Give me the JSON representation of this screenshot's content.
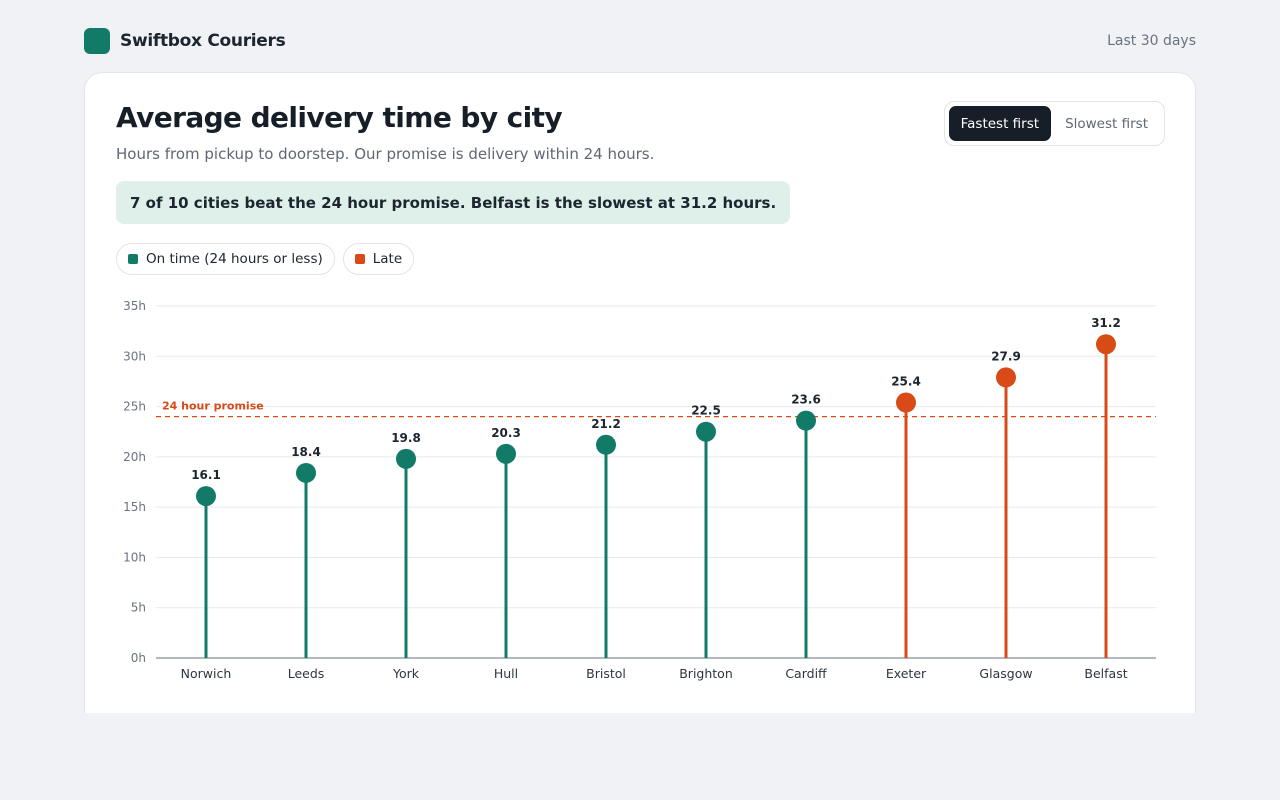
{
  "brand": {
    "name": "Swiftbox Couriers"
  },
  "header": {
    "period": "Last 30 days"
  },
  "card": {
    "title": "Average delivery time by city",
    "subtitle": "Hours from pickup to doorstep. Our promise is delivery within 24 hours.",
    "callout": "7 of 10 cities beat the 24 hour promise. Belfast is the slowest at 31.2 hours."
  },
  "sort_toggle": {
    "fastest": "Fastest first",
    "slowest": "Slowest first",
    "selected": "fastest"
  },
  "legend": {
    "on_time": "On time (24 hours or less)",
    "late": "Late"
  },
  "colors": {
    "on_time": "#127b68",
    "late": "#d84a16",
    "brand": "#127b68",
    "grid": "#e7eaee",
    "axis": "#9aa1ab"
  },
  "chart_data": {
    "type": "lollipop",
    "categories": [
      "Norwich",
      "Leeds",
      "York",
      "Hull",
      "Bristol",
      "Brighton",
      "Cardiff",
      "Exeter",
      "Glasgow",
      "Belfast"
    ],
    "values": [
      16.1,
      18.4,
      19.8,
      20.3,
      21.2,
      22.5,
      23.6,
      25.4,
      27.9,
      31.2
    ],
    "value_labels": [
      "16.1",
      "18.4",
      "19.8",
      "20.3",
      "21.2",
      "22.5",
      "23.6",
      "25.4",
      "27.9",
      "31.2"
    ],
    "status": [
      "on_time",
      "on_time",
      "on_time",
      "on_time",
      "on_time",
      "on_time",
      "on_time",
      "late",
      "late",
      "late"
    ],
    "ylim": [
      0,
      35
    ],
    "yticks": [
      0,
      5,
      10,
      15,
      20,
      25,
      30,
      35
    ],
    "ytick_labels": [
      "0h",
      "5h",
      "10h",
      "15h",
      "20h",
      "25h",
      "30h",
      "35h"
    ],
    "grid": true,
    "threshold": {
      "value": 24,
      "label": "24 hour promise"
    }
  }
}
